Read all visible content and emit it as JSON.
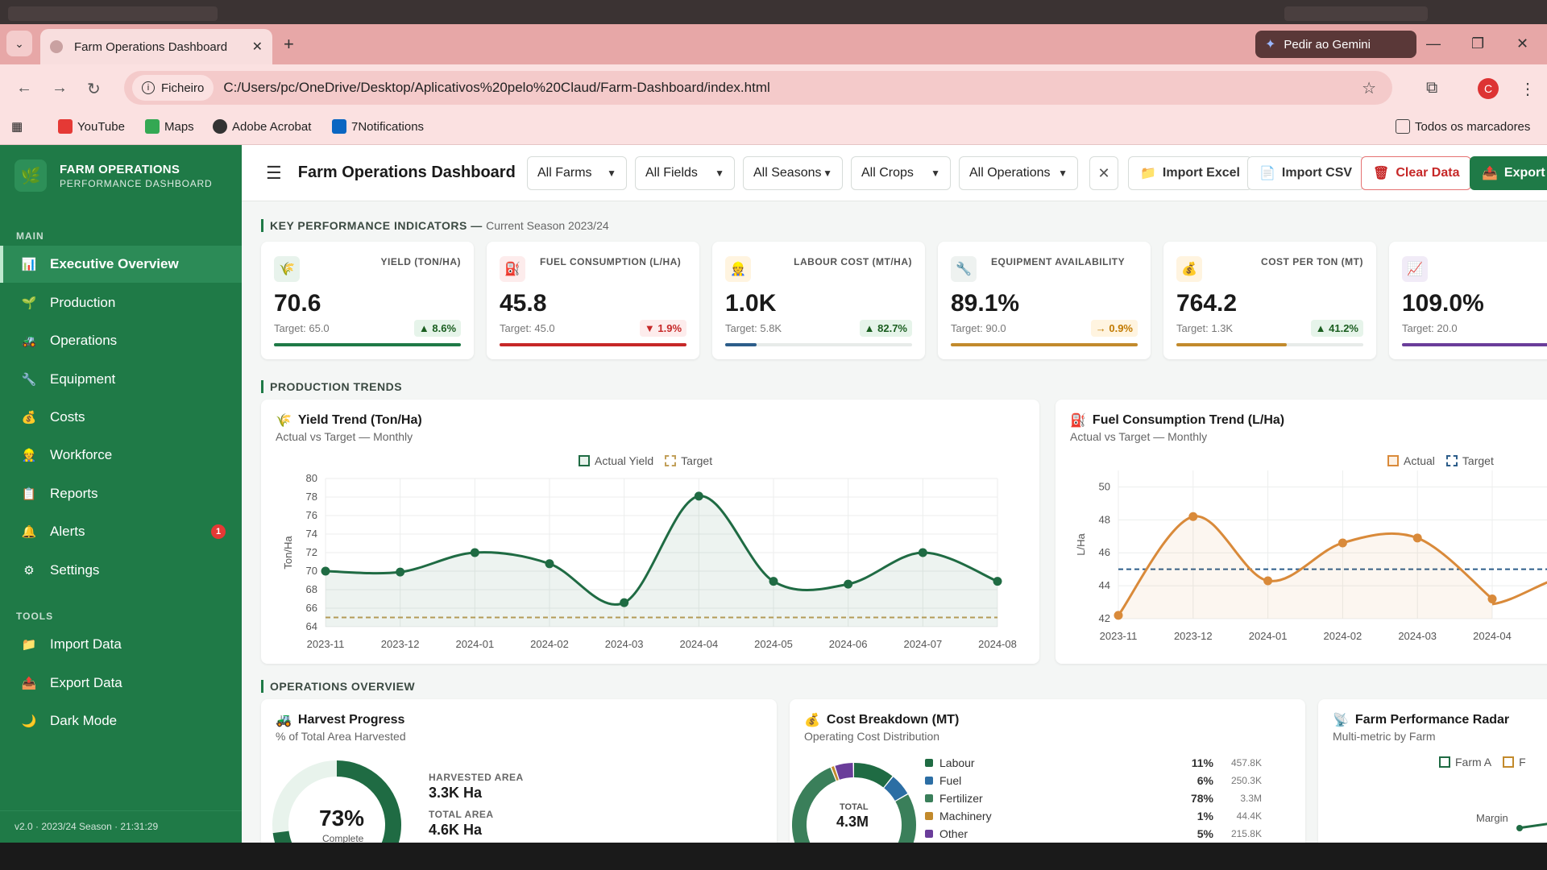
{
  "browser": {
    "tab_title": "Farm Operations Dashboard",
    "gemini_label": "Pedir ao Gemini",
    "chip_label": "Ficheiro",
    "url": "C:/Users/pc/OneDrive/Desktop/Aplicativos%20pelo%20Claud/Farm-Dashboard/index.html",
    "avatar_letter": "C",
    "bookmarks": [
      "YouTube",
      "Maps",
      "Adobe Acrobat",
      "7Notifications"
    ],
    "all_bookmarks": "Todos os marcadores"
  },
  "brand": {
    "title": "FARM OPERATIONS",
    "subtitle": "PERFORMANCE DASHBOARD"
  },
  "sidebar": {
    "main_label": "MAIN",
    "tools_label": "TOOLS",
    "items": [
      {
        "label": "Executive Overview",
        "icon": "chart-icon"
      },
      {
        "label": "Production",
        "icon": "sprout-icon"
      },
      {
        "label": "Operations",
        "icon": "tractor-icon"
      },
      {
        "label": "Equipment",
        "icon": "wrench-icon"
      },
      {
        "label": "Costs",
        "icon": "money-bag-icon"
      },
      {
        "label": "Workforce",
        "icon": "worker-icon"
      },
      {
        "label": "Reports",
        "icon": "report-icon"
      },
      {
        "label": "Alerts",
        "icon": "bell-icon",
        "badge": "1"
      },
      {
        "label": "Settings",
        "icon": "gear-icon"
      }
    ],
    "tools": [
      {
        "label": "Import Data",
        "icon": "folder-icon"
      },
      {
        "label": "Export Data",
        "icon": "export-icon"
      },
      {
        "label": "Dark Mode",
        "icon": "moon-icon"
      }
    ],
    "footer": "v2.0 · 2023/24 Season · 21:31:29"
  },
  "topbar": {
    "title": "Farm Operations Dashboard",
    "filters": [
      "All Farms",
      "All Fields",
      "All Seasons",
      "All Crops",
      "All Operations"
    ],
    "import_excel": "Import Excel",
    "import_csv": "Import CSV",
    "clear_data": "Clear Data",
    "export": "Export"
  },
  "kpi_section": {
    "title": "KEY PERFORMANCE INDICATORS —",
    "subtitle": "Current Season 2023/24"
  },
  "kpis": [
    {
      "label": "YIELD (TON/HA)",
      "value": "70.6",
      "target": "Target: 65.0",
      "delta": "▲ 8.6%",
      "trend": "up",
      "progress": 1.0,
      "color": "#1f7a47"
    },
    {
      "label": "FUEL CONSUMPTION (L/HA)",
      "value": "45.8",
      "target": "Target: 45.0",
      "delta": "▼ 1.9%",
      "trend": "down",
      "progress": 1.0,
      "color": "#c62828"
    },
    {
      "label": "LABOUR COST (MT/HA)",
      "value": "1.0K",
      "target": "Target: 5.8K",
      "delta": "▲ 82.7%",
      "trend": "up",
      "progress": 0.17,
      "color": "#2c5d8a"
    },
    {
      "label": "EQUIPMENT AVAILABILITY",
      "value": "89.1%",
      "target": "Target: 90.0",
      "delta": "→ 0.9%",
      "trend": "flat",
      "progress": 1.0,
      "color": "#c28a2c"
    },
    {
      "label": "COST PER TON (MT)",
      "value": "764.2",
      "target": "Target: 1.3K",
      "delta": "▲ 41.2%",
      "trend": "up",
      "progress": 0.59,
      "color": "#c28a2c"
    },
    {
      "label": "",
      "value": "109.0%",
      "target": "Target: 20.0",
      "delta": "▲",
      "trend": "up",
      "progress": 1.0,
      "color": "#6a3d9a"
    }
  ],
  "production_section": {
    "title": "PRODUCTION TRENDS"
  },
  "operations_section": {
    "title": "OPERATIONS OVERVIEW"
  },
  "chart_data": [
    {
      "type": "line",
      "title": "Yield Trend (Ton/Ha)",
      "subtitle": "Actual vs Target — Monthly",
      "ylabel": "Ton/Ha",
      "x": [
        "2023-11",
        "2023-12",
        "2024-01",
        "2024-02",
        "2024-03",
        "2024-04",
        "2024-05",
        "2024-06",
        "2024-07",
        "2024-08"
      ],
      "ylim": [
        64,
        80
      ],
      "yticks": [
        64,
        66,
        68,
        70,
        72,
        74,
        76,
        78,
        80
      ],
      "series": [
        {
          "name": "Actual Yield",
          "values": [
            70.0,
            69.9,
            72.0,
            70.8,
            66.6,
            78.1,
            68.9,
            68.6,
            72.0,
            68.9
          ],
          "color": "#1f6b43"
        },
        {
          "name": "Target",
          "values": [
            65,
            65,
            65,
            65,
            65,
            65,
            65,
            65,
            65,
            65
          ],
          "color": "#c2a05a"
        }
      ],
      "legend": "top-center",
      "grid": true
    },
    {
      "type": "line",
      "title": "Fuel Consumption Trend (L/Ha)",
      "subtitle": "Actual vs Target — Monthly",
      "ylabel": "L/Ha",
      "x": [
        "2023-11",
        "2023-12",
        "2024-01",
        "2024-02",
        "2024-03",
        "2024-04"
      ],
      "ylim": [
        42,
        51
      ],
      "yticks": [
        42,
        44,
        46,
        48,
        50
      ],
      "series": [
        {
          "name": "Actual",
          "values": [
            42.2,
            48.2,
            44.3,
            46.6,
            46.9,
            43.2
          ],
          "color": "#d98a3a"
        },
        {
          "name": "Target",
          "values": [
            45,
            45,
            45,
            45,
            45,
            45
          ],
          "color": "#2c5d8a"
        }
      ],
      "legend": "top-right",
      "grid": true
    },
    {
      "type": "pie",
      "title": "Harvest Progress",
      "subtitle": "% of Total Area Harvested",
      "values": [
        73,
        27
      ],
      "center_value": "73%",
      "center_label": "Complete"
    },
    {
      "type": "pie",
      "title": "Cost Breakdown (MT)",
      "subtitle": "Operating Cost Distribution",
      "center_label": "TOTAL",
      "center_value": "4.3M",
      "categories": [
        "Labour",
        "Fuel",
        "Fertilizer",
        "Machinery",
        "Other"
      ],
      "values": [
        11,
        6,
        78,
        1,
        5
      ],
      "amounts": [
        "457.8K",
        "250.3K",
        "3.3M",
        "44.4K",
        "215.8K"
      ],
      "colors": [
        "#1f6b43",
        "#2c6ea4",
        "#3a7f5a",
        "#c28a2c",
        "#6a3d9a"
      ]
    }
  ],
  "harvest": {
    "harvested_label": "HARVESTED AREA",
    "harvested_value": "3.3K Ha",
    "total_label": "TOTAL AREA",
    "total_value": "4.6K Ha"
  },
  "radar": {
    "title": "Farm Performance Radar",
    "subtitle": "Multi-metric by Farm",
    "legend": [
      "Farm A",
      "F"
    ],
    "axis_label": "Margin"
  }
}
